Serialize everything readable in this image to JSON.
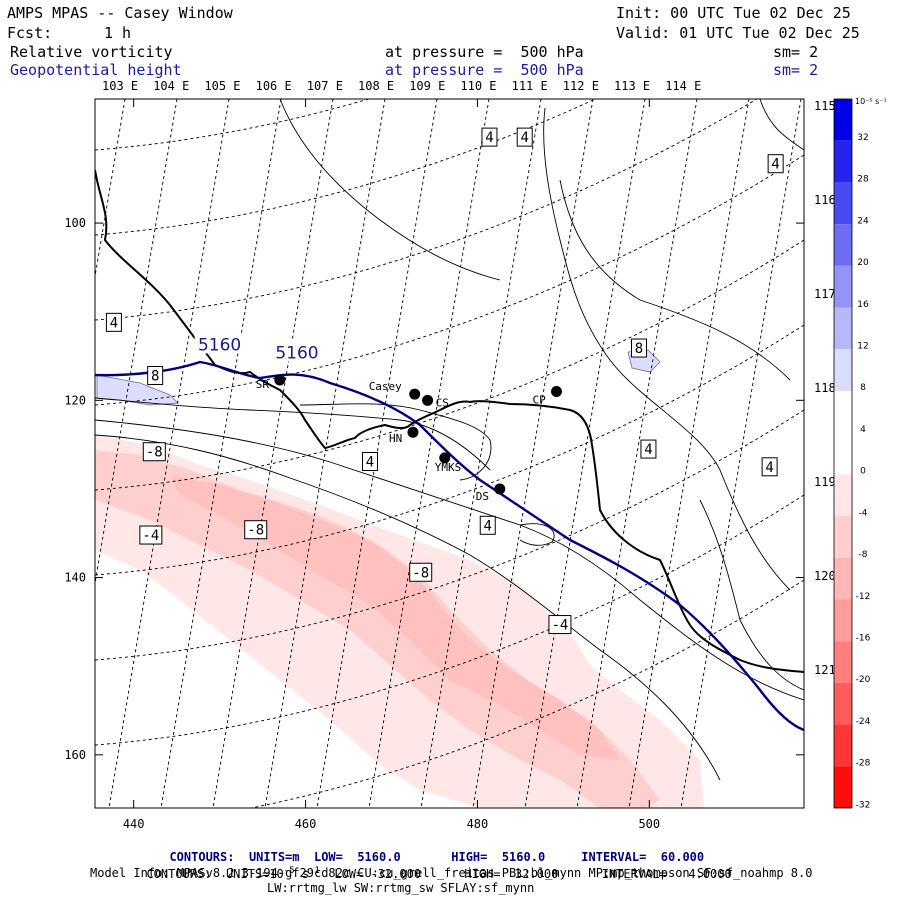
{
  "header": {
    "title": "AMPS MPAS -- Casey Window",
    "init": "Init: 00 UTC Tue 02 Dec 25",
    "fcst_label": "Fcst:",
    "fcst_value": "1 h",
    "valid": "Valid: 01 UTC Tue 02 Dec 25",
    "field1_name": "Relative vorticity",
    "field1_pressure": "at pressure =  500 hPa",
    "field1_sm": "sm= 2",
    "field2_name": "Geopotential height",
    "field2_pressure": "at pressure =  500 hPa",
    "field2_sm": "sm= 2"
  },
  "axes": {
    "x_ticks": [
      {
        "value": 440,
        "label": "440"
      },
      {
        "value": 460,
        "label": "460"
      },
      {
        "value": 480,
        "label": "480"
      },
      {
        "value": 500,
        "label": "500"
      }
    ],
    "y_ticks": [
      {
        "value": 100,
        "label": "100"
      },
      {
        "value": 120,
        "label": "120"
      },
      {
        "value": 140,
        "label": "140"
      },
      {
        "value": 160,
        "label": "160"
      }
    ],
    "x_range": [
      435.5,
      518
    ],
    "y_range": [
      86,
      166
    ],
    "lon_labels_top": [
      "103 E",
      "104 E",
      "105 E",
      "106 E",
      "107 E",
      "108 E",
      "109 E",
      "110 E",
      "111 E",
      "112 E",
      "113 E",
      "114 E"
    ],
    "lon_labels_right": [
      "115 E",
      "116 E",
      "117 E",
      "118 E",
      "119 E",
      "120 E",
      "121 E"
    ]
  },
  "stations": [
    {
      "name": "SR",
      "x": 457,
      "y": 117.7
    },
    {
      "name": "Casey",
      "x": 472.7,
      "y": 119.3
    },
    {
      "name": "CS",
      "x": 474.2,
      "y": 120
    },
    {
      "name": "HN",
      "x": 472.5,
      "y": 123.6
    },
    {
      "name": "YMKS",
      "x": 476.2,
      "y": 126.5
    },
    {
      "name": "DS",
      "x": 482.6,
      "y": 130
    },
    {
      "name": "CP",
      "x": 489.2,
      "y": 119
    }
  ],
  "contour_labels": [
    {
      "text": "4",
      "x": 437.7,
      "y": 111.2
    },
    {
      "text": "8",
      "x": 442.5,
      "y": 117.2
    },
    {
      "text": "-8",
      "x": 442.4,
      "y": 125.8
    },
    {
      "text": "-4",
      "x": 442,
      "y": 135.2
    },
    {
      "text": "-8",
      "x": 454.2,
      "y": 134.6
    },
    {
      "text": "4",
      "x": 467.5,
      "y": 126.9
    },
    {
      "text": "-8",
      "x": 473.4,
      "y": 139.4
    },
    {
      "text": "4",
      "x": 481.4,
      "y": 90.3
    },
    {
      "text": "4",
      "x": 485.5,
      "y": 90.3
    },
    {
      "text": "4",
      "x": 481.2,
      "y": 134.1
    },
    {
      "text": "-4",
      "x": 489.6,
      "y": 145.3
    },
    {
      "text": "8",
      "x": 498.8,
      "y": 114.1
    },
    {
      "text": "4",
      "x": 499.9,
      "y": 125.5
    },
    {
      "text": "4",
      "x": 514.7,
      "y": 93.3
    },
    {
      "text": "4",
      "x": 514,
      "y": 127.5
    }
  ],
  "height_labels": [
    {
      "text": "5160",
      "x": 450,
      "y": 113.7
    },
    {
      "text": "5160",
      "x": 459,
      "y": 114.6
    }
  ],
  "colorbar": {
    "unit_label": "10⁻⁵ s⁻¹",
    "ticks": [
      "32",
      "28",
      "24",
      "20",
      "16",
      "12",
      "8",
      "4",
      "0",
      "-4",
      "-8",
      "-12",
      "-16",
      "-20",
      "-24",
      "-28",
      "-32"
    ],
    "colors": [
      "#0000e6",
      "#2424ee",
      "#4a4af2",
      "#6e6ef5",
      "#9494f8",
      "#b7b7fb",
      "#dcdcfd",
      "#ffffff",
      "#ffffff",
      "#ffe7e7",
      "#ffcfcf",
      "#ffb6b6",
      "#ff9c9c",
      "#ff7e7e",
      "#ff5c5c",
      "#ff3636",
      "#ff0c0c"
    ]
  },
  "footer": {
    "line1_contours": "CONTOURS:",
    "line1_units": "UNITS=m",
    "line1_low": "LOW=  5160.0",
    "line1_high": "HIGH=  5160.0",
    "line1_interval": "INTERVAL=  60.000",
    "line2_contours": "CONTOURS:",
    "line2_units": "UNITS=10",
    "line2_units_exp": "-5",
    "line2_units_tail": "s",
    "line2_units_tail_exp": "-1",
    "line2_low": "LOW= -32.000",
    "line2_high": "HIGH=  32.000",
    "line2_interval": "INTERVAL=   4.0000",
    "model_info": "Model Info: MPASv8.2.3-194-gf29cd82c CU:cu_grell_freitas PBL:bl_mynn MP:mp_thompson SF:sf_noahmp 8.0",
    "model_info2": "LW:rrtmg_lw SW:rrtmg_sw SFLAY:sf_mynn"
  }
}
